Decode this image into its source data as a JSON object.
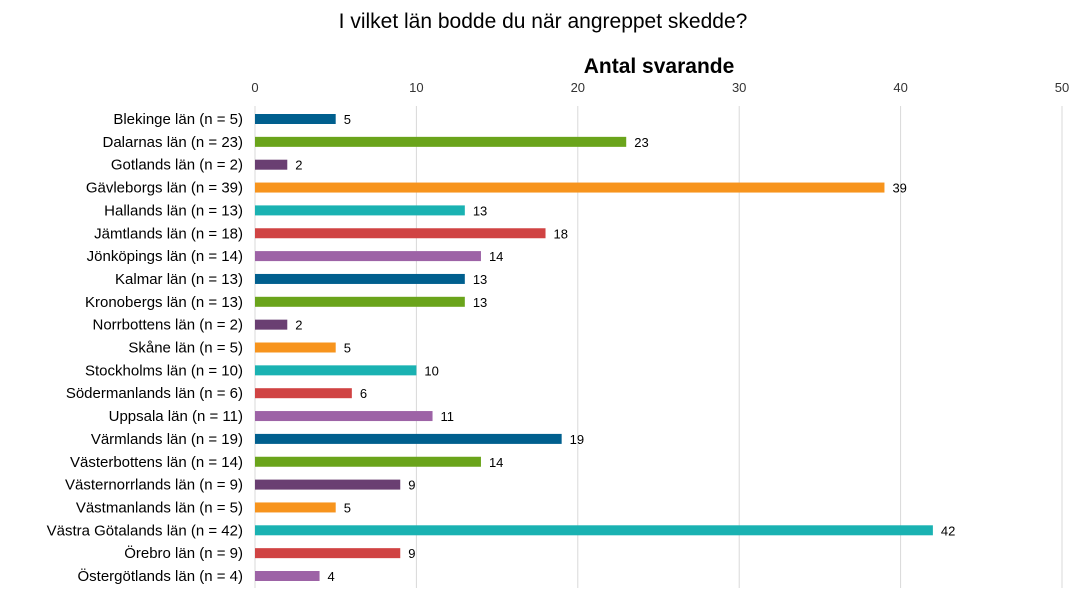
{
  "chart_data": {
    "type": "bar",
    "orientation": "horizontal",
    "title": "I vilket län bodde du när  angreppet skedde?",
    "axis_title": "Antal svarande",
    "xlim": [
      0,
      50
    ],
    "ticks": [
      0,
      10,
      20,
      30,
      40,
      50
    ],
    "grid": true,
    "colors": [
      "#005f8e",
      "#6aa41b",
      "#6a3f72",
      "#f7941d",
      "#1ab2b2",
      "#d04343",
      "#9d63a6"
    ],
    "categories": [
      "Blekinge län (n = 5)",
      "Dalarnas län (n = 23)",
      "Gotlands län (n = 2)",
      "Gävleborgs län (n = 39)",
      "Hallands län (n = 13)",
      "Jämtlands län (n = 18)",
      "Jönköpings län (n = 14)",
      "Kalmar län (n = 13)",
      "Kronobergs län (n = 13)",
      "Norrbottens län (n = 2)",
      "Skåne län (n = 5)",
      "Stockholms län (n = 10)",
      "Södermanlands län (n = 6)",
      "Uppsala län (n = 11)",
      "Värmlands län (n = 19)",
      "Västerbottens län (n = 14)",
      "Västernorrlands län (n = 9)",
      "Västmanlands län (n = 5)",
      "Västra Götalands län (n = 42)",
      "Örebro län (n = 9)",
      "Östergötlands län (n = 4)"
    ],
    "values": [
      5,
      23,
      2,
      39,
      13,
      18,
      14,
      13,
      13,
      2,
      5,
      10,
      6,
      11,
      19,
      14,
      9,
      5,
      42,
      9,
      4
    ]
  }
}
